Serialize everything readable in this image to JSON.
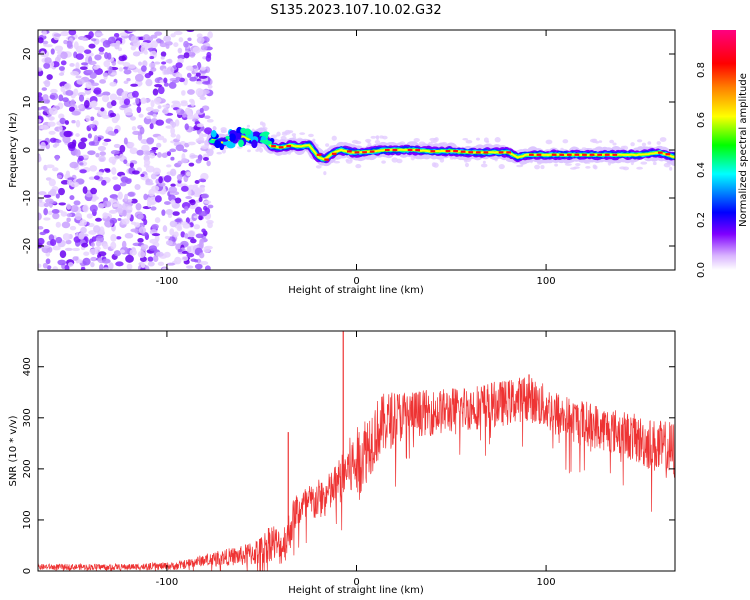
{
  "title": "S135.2023.107.10.02.G32",
  "chart_data": [
    {
      "type": "heatmap",
      "xlabel": "Height of straight line (km)",
      "ylabel": "Frequency (Hz)",
      "xlim": [
        -168,
        168
      ],
      "ylim": [
        -25,
        25
      ],
      "xticks": [
        -100,
        0,
        100
      ],
      "yticks": [
        -20,
        -10,
        0,
        10,
        20
      ],
      "noise_region_x": [
        -168,
        -77
      ],
      "signal_track": {
        "x": [
          -76,
          -70,
          -62,
          -55,
          -50,
          -45,
          -40,
          -35,
          -30,
          -25,
          -20,
          -17,
          -12,
          -8,
          -3,
          2,
          8,
          15,
          22,
          30,
          40,
          50,
          60,
          70,
          80,
          85,
          90,
          100,
          110,
          120,
          130,
          140,
          150,
          160,
          168
        ],
        "freq": [
          2,
          1.5,
          3,
          2,
          3,
          0.8,
          0.5,
          1,
          0.7,
          1,
          -1.5,
          -2,
          -0.5,
          0,
          -0.5,
          -0.5,
          -0.3,
          0,
          0,
          0,
          -0.3,
          -0.2,
          -0.5,
          -0.5,
          -0.5,
          -1.5,
          -1,
          -1,
          -1,
          -1,
          -1,
          -1,
          -1,
          -0.5,
          -1.5
        ]
      },
      "colorbar": {
        "label": "Normalized spectral amplitude",
        "ticks": [
          0.0,
          0.2,
          0.4,
          0.6,
          0.8
        ],
        "range": [
          0,
          0.96
        ],
        "colors": [
          "#ffffff",
          "#d9b3ff",
          "#7f00ff",
          "#0000ff",
          "#00ffff",
          "#00ff00",
          "#ffff00",
          "#ff8000",
          "#ff0000",
          "#ff0080"
        ]
      }
    },
    {
      "type": "line",
      "xlabel": "Height of straight line (km)",
      "ylabel": "SNR (10 * v/v)",
      "xlim": [
        -168,
        168
      ],
      "ylim": [
        0,
        470
      ],
      "xticks": [
        -100,
        0,
        100
      ],
      "yticks": [
        0,
        100,
        200,
        300,
        400
      ],
      "color": "#ee3333",
      "envelope": {
        "x": [
          -168,
          -120,
          -95,
          -85,
          -75,
          -60,
          -50,
          -45,
          -40,
          -36,
          -32,
          -25,
          -15,
          -10,
          -5,
          0,
          5,
          10,
          15,
          20,
          30,
          40,
          50,
          60,
          70,
          80,
          90,
          100,
          110,
          120,
          130,
          140,
          150,
          160,
          168
        ],
        "mean": [
          8,
          8,
          10,
          18,
          25,
          30,
          40,
          60,
          45,
          70,
          120,
          130,
          150,
          170,
          200,
          210,
          240,
          270,
          290,
          300,
          310,
          310,
          315,
          320,
          325,
          330,
          340,
          320,
          300,
          290,
          280,
          270,
          255,
          240,
          235
        ],
        "spread": [
          6,
          6,
          8,
          10,
          14,
          20,
          30,
          40,
          35,
          45,
          35,
          40,
          40,
          45,
          55,
          70,
          70,
          65,
          60,
          55,
          45,
          45,
          45,
          45,
          45,
          45,
          45,
          45,
          45,
          45,
          45,
          45,
          50,
          55,
          60
        ]
      },
      "spikes": [
        {
          "x": -36,
          "y": 272
        },
        {
          "x": -7,
          "y": 470
        },
        {
          "x": 91,
          "y": 385
        }
      ]
    }
  ]
}
